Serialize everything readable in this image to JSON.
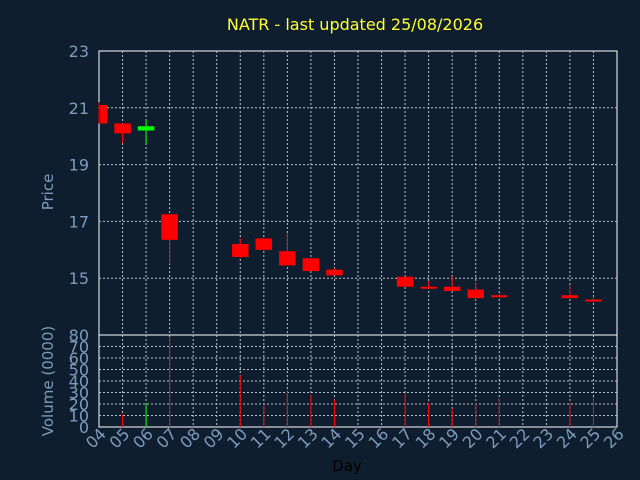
{
  "title": "NATR - last updated 25/08/2026",
  "colors": {
    "up": "#00ff00",
    "down": "#ff0000",
    "background": "#0f1e2f",
    "panel": "#0f1e2f",
    "axis_text": "#7d9bbb",
    "title": "#ffff33"
  },
  "chart_data": [
    {
      "type": "candlestick",
      "ylabel": "Price",
      "ylim": [
        13,
        23
      ],
      "yticks": [
        15,
        17,
        19,
        21,
        23
      ],
      "grid": true,
      "candles": [
        {
          "day": 4,
          "open": 21.1,
          "high": 21.2,
          "low": 20.45,
          "close": 20.45
        },
        {
          "day": 5,
          "open": 20.45,
          "high": 20.45,
          "low": 19.75,
          "close": 20.1
        },
        {
          "day": 6,
          "open": 20.2,
          "high": 20.6,
          "low": 19.7,
          "close": 20.35
        },
        {
          "day": 7,
          "open": 17.25,
          "high": 17.25,
          "low": 15.5,
          "close": 16.35
        },
        {
          "day": 10,
          "open": 16.2,
          "high": 16.4,
          "low": 15.7,
          "close": 15.75
        },
        {
          "day": 11,
          "open": 16.4,
          "high": 16.4,
          "low": 15.95,
          "close": 16.0
        },
        {
          "day": 12,
          "open": 15.95,
          "high": 16.6,
          "low": 15.45,
          "close": 15.45
        },
        {
          "day": 13,
          "open": 15.7,
          "high": 15.7,
          "low": 15.25,
          "close": 15.25
        },
        {
          "day": 14,
          "open": 15.3,
          "high": 15.35,
          "low": 15.1,
          "close": 15.1
        },
        {
          "day": 17,
          "open": 15.05,
          "high": 15.05,
          "low": 14.7,
          "close": 14.7
        },
        {
          "day": 18,
          "open": 14.7,
          "high": 14.9,
          "low": 14.65,
          "close": 14.65
        },
        {
          "day": 19,
          "open": 14.7,
          "high": 15.05,
          "low": 14.55,
          "close": 14.55
        },
        {
          "day": 20,
          "open": 14.6,
          "high": 14.85,
          "low": 14.25,
          "close": 14.3
        },
        {
          "day": 21,
          "open": 14.4,
          "high": 14.45,
          "low": 14.3,
          "close": 14.35
        },
        {
          "day": 24,
          "open": 14.4,
          "high": 14.75,
          "low": 14.3,
          "close": 14.3
        },
        {
          "day": 25,
          "open": 14.25,
          "high": 14.35,
          "low": 14.15,
          "close": 14.2
        }
      ]
    },
    {
      "type": "bar",
      "ylabel": "Volume (0000)",
      "xlabel": "Day",
      "ylim": [
        0,
        80
      ],
      "yticks": [
        0,
        10,
        20,
        30,
        40,
        50,
        60,
        70,
        80
      ],
      "grid": true,
      "xticks": [
        "04",
        "05",
        "06",
        "07",
        "08",
        "09",
        "10",
        "11",
        "12",
        "13",
        "14",
        "15",
        "16",
        "17",
        "18",
        "19",
        "20",
        "21",
        "22",
        "23",
        "24",
        "25",
        "26"
      ],
      "x_start_day": 4,
      "bars": [
        {
          "day": 5,
          "value": 11,
          "direction": "down"
        },
        {
          "day": 6,
          "value": 21,
          "direction": "up"
        },
        {
          "day": 7,
          "value": 78,
          "direction": "down"
        },
        {
          "day": 10,
          "value": 45,
          "direction": "down"
        },
        {
          "day": 11,
          "value": 20,
          "direction": "down"
        },
        {
          "day": 12,
          "value": 32,
          "direction": "down"
        },
        {
          "day": 13,
          "value": 28,
          "direction": "down"
        },
        {
          "day": 14,
          "value": 24,
          "direction": "down"
        },
        {
          "day": 17,
          "value": 29,
          "direction": "down"
        },
        {
          "day": 18,
          "value": 21,
          "direction": "down"
        },
        {
          "day": 19,
          "value": 16,
          "direction": "down"
        },
        {
          "day": 20,
          "value": 21,
          "direction": "down"
        },
        {
          "day": 21,
          "value": 25,
          "direction": "down"
        },
        {
          "day": 24,
          "value": 21,
          "direction": "down"
        },
        {
          "day": 25,
          "value": 26,
          "direction": "down"
        }
      ]
    }
  ]
}
